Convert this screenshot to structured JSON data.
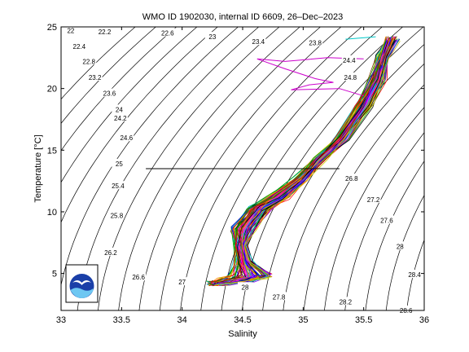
{
  "chart_data": {
    "type": "line",
    "title": "WMO ID 1902030, internal ID 6609, 26–Dec–2023",
    "xlabel": "Salinity",
    "ylabel": "Temperature [°C]",
    "xlim": [
      33,
      36
    ],
    "ylim": [
      2,
      25
    ],
    "xticks": [
      "33",
      "33.5",
      "34",
      "34.5",
      "35",
      "35.5",
      "36"
    ],
    "yticks": [
      "5",
      "10",
      "15",
      "20",
      "25"
    ],
    "grid": false,
    "isopycnals": {
      "left_labels": [
        {
          "label": "22",
          "s": 33.08,
          "t": 24.7
        },
        {
          "label": "22.2",
          "s": 33.36,
          "t": 24.6
        },
        {
          "label": "22.4",
          "s": 33.15,
          "t": 23.4
        },
        {
          "label": "22.6",
          "s": 33.88,
          "t": 24.5
        },
        {
          "label": "22.8",
          "s": 33.23,
          "t": 22.2
        },
        {
          "label": "23",
          "s": 34.25,
          "t": 24.2
        },
        {
          "label": "23.2",
          "s": 33.28,
          "t": 20.9
        },
        {
          "label": "23.4",
          "s": 34.63,
          "t": 23.8
        },
        {
          "label": "23.6",
          "s": 33.4,
          "t": 19.6
        },
        {
          "label": "23.8",
          "s": 35.1,
          "t": 23.7
        },
        {
          "label": "24",
          "s": 33.48,
          "t": 18.3
        },
        {
          "label": "24.2",
          "s": 33.49,
          "t": 17.6
        },
        {
          "label": "24.4",
          "s": 35.38,
          "t": 22.3
        },
        {
          "label": "24.6",
          "s": 33.54,
          "t": 16.0
        },
        {
          "label": "24.8",
          "s": 35.39,
          "t": 20.9
        },
        {
          "label": "25",
          "s": 33.48,
          "t": 13.9
        },
        {
          "label": "25.4",
          "s": 33.47,
          "t": 12.1
        },
        {
          "label": "25.8",
          "s": 33.46,
          "t": 9.7
        },
        {
          "label": "26.2",
          "s": 33.41,
          "t": 6.7
        },
        {
          "label": "26.6",
          "s": 33.64,
          "t": 4.7
        },
        {
          "label": "27",
          "s": 34.0,
          "t": 4.3
        }
      ],
      "right_labels": [
        {
          "label": "26.8",
          "s": 35.4,
          "t": 12.7
        },
        {
          "label": "27.2",
          "s": 35.58,
          "t": 11.0
        },
        {
          "label": "27.6",
          "s": 35.69,
          "t": 9.3
        },
        {
          "label": "28",
          "s": 35.8,
          "t": 7.2
        },
        {
          "label": "28.4",
          "s": 35.92,
          "t": 4.9
        },
        {
          "label": "27.8",
          "s": 34.8,
          "t": 3.1
        },
        {
          "label": "28.2",
          "s": 35.35,
          "t": 2.7
        },
        {
          "label": "28.6",
          "s": 35.85,
          "t": 2.0
        },
        {
          "label": "28",
          "s": 34.52,
          "t": 3.9
        }
      ]
    },
    "profile_envelope": [
      [
        34.27,
        3.9
      ],
      [
        34.4,
        3.2
      ],
      [
        34.62,
        2.9
      ],
      [
        34.8,
        2.7
      ],
      [
        34.6,
        3.5
      ],
      [
        34.45,
        4.8
      ],
      [
        34.38,
        6.0
      ],
      [
        34.52,
        7.7
      ],
      [
        34.7,
        8.6
      ],
      [
        34.95,
        10.4
      ],
      [
        35.15,
        11.8
      ],
      [
        35.35,
        13.4
      ],
      [
        35.58,
        16.2
      ],
      [
        35.68,
        18.0
      ],
      [
        35.7,
        20.5
      ],
      [
        35.72,
        23.5
      ],
      [
        35.75,
        24.6
      ],
      [
        35.62,
        24.6
      ],
      [
        35.55,
        23.5
      ],
      [
        35.42,
        21.0
      ],
      [
        35.28,
        18.5
      ],
      [
        35.12,
        16.7
      ],
      [
        35.0,
        15.0
      ],
      [
        34.9,
        13.8
      ],
      [
        34.75,
        12.8
      ],
      [
        34.62,
        11.2
      ],
      [
        34.52,
        9.8
      ],
      [
        34.42,
        8.3
      ],
      [
        34.33,
        6.9
      ],
      [
        34.28,
        6.0
      ],
      [
        34.22,
        5.2
      ],
      [
        34.25,
        4.5
      ]
    ],
    "series_colors": [
      "#0000ff",
      "#ff0000",
      "#00a000",
      "#ff00ff",
      "#00c8c8",
      "#c8c800",
      "#000000",
      "#ff8000",
      "#8000ff",
      "#804000"
    ],
    "anomalies": [
      {
        "color": "#000000",
        "points": [
          [
            33.7,
            13.5
          ],
          [
            35.3,
            13.5
          ]
        ]
      },
      {
        "color": "#cc00cc",
        "points": [
          [
            35.5,
            22.4
          ],
          [
            35.2,
            22.5
          ],
          [
            34.85,
            22.2
          ],
          [
            34.62,
            22.4
          ],
          [
            34.85,
            21.6
          ],
          [
            35.1,
            20.8
          ],
          [
            35.25,
            20.5
          ],
          [
            35.05,
            20.3
          ],
          [
            34.9,
            19.9
          ],
          [
            35.3,
            20.0
          ],
          [
            35.5,
            19.4
          ]
        ]
      },
      {
        "color": "#00c8c8",
        "points": [
          [
            35.35,
            24.0
          ],
          [
            35.6,
            24.2
          ]
        ]
      }
    ]
  },
  "logo": {
    "name": "noaa-logo"
  }
}
